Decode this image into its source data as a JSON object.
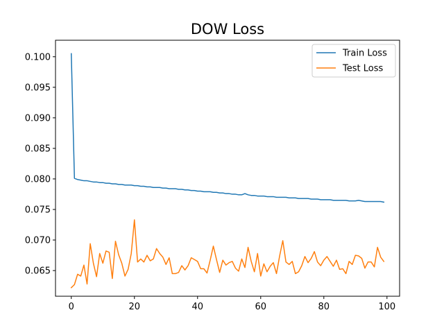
{
  "chart_data": {
    "type": "line",
    "title": "DOW Loss",
    "xlabel": "",
    "ylabel": "",
    "xlim": [
      -5,
      104
    ],
    "ylim": [
      0.0608,
      0.1027
    ],
    "xticks": [
      0,
      20,
      40,
      60,
      80,
      100
    ],
    "yticks": [
      0.065,
      0.07,
      0.075,
      0.08,
      0.085,
      0.09,
      0.095,
      0.1
    ],
    "ytick_labels": [
      "0.065",
      "0.070",
      "0.075",
      "0.080",
      "0.085",
      "0.090",
      "0.095",
      "0.100"
    ],
    "xtick_labels": [
      "0",
      "20",
      "40",
      "60",
      "80",
      "100"
    ],
    "grid": false,
    "legend_position": "top-right",
    "series": [
      {
        "name": "Train Loss",
        "color": "#1f77b4",
        "x": [
          0,
          1,
          2,
          3,
          4,
          5,
          6,
          7,
          8,
          9,
          10,
          11,
          12,
          13,
          14,
          15,
          16,
          17,
          18,
          19,
          20,
          21,
          22,
          23,
          24,
          25,
          26,
          27,
          28,
          29,
          30,
          31,
          32,
          33,
          34,
          35,
          36,
          37,
          38,
          39,
          40,
          41,
          42,
          43,
          44,
          45,
          46,
          47,
          48,
          49,
          50,
          51,
          52,
          53,
          54,
          55,
          56,
          57,
          58,
          59,
          60,
          61,
          62,
          63,
          64,
          65,
          66,
          67,
          68,
          69,
          70,
          71,
          72,
          73,
          74,
          75,
          76,
          77,
          78,
          79,
          80,
          81,
          82,
          83,
          84,
          85,
          86,
          87,
          88,
          89,
          90,
          91,
          92,
          93,
          94,
          95,
          96,
          97,
          98,
          99
        ],
        "values": [
          0.1005,
          0.0801,
          0.0799,
          0.0798,
          0.0797,
          0.0797,
          0.0796,
          0.0795,
          0.0795,
          0.0794,
          0.0794,
          0.0793,
          0.0793,
          0.0792,
          0.0792,
          0.0791,
          0.0791,
          0.079,
          0.079,
          0.079,
          0.0789,
          0.0789,
          0.0788,
          0.0788,
          0.0787,
          0.0787,
          0.0786,
          0.0786,
          0.0786,
          0.0785,
          0.0785,
          0.0784,
          0.0784,
          0.0784,
          0.0783,
          0.0783,
          0.0782,
          0.0782,
          0.0781,
          0.0781,
          0.078,
          0.078,
          0.0779,
          0.0779,
          0.0779,
          0.0778,
          0.0778,
          0.0777,
          0.0777,
          0.0776,
          0.0776,
          0.0775,
          0.0775,
          0.0774,
          0.0774,
          0.0776,
          0.0774,
          0.0773,
          0.0773,
          0.0772,
          0.0772,
          0.0772,
          0.0771,
          0.0771,
          0.0771,
          0.077,
          0.077,
          0.077,
          0.077,
          0.0769,
          0.0769,
          0.0769,
          0.0768,
          0.0768,
          0.0768,
          0.0768,
          0.0767,
          0.0767,
          0.0767,
          0.0766,
          0.0766,
          0.0766,
          0.0766,
          0.0765,
          0.0765,
          0.0765,
          0.0765,
          0.0765,
          0.0764,
          0.0764,
          0.0764,
          0.0765,
          0.0764,
          0.0763,
          0.0763,
          0.0763,
          0.0763,
          0.0763,
          0.0763,
          0.0762
        ]
      },
      {
        "name": "Test Loss",
        "color": "#ff7f0e",
        "x": [
          0,
          1,
          2,
          3,
          4,
          5,
          6,
          7,
          8,
          9,
          10,
          11,
          12,
          13,
          14,
          15,
          16,
          17,
          18,
          19,
          20,
          21,
          22,
          23,
          24,
          25,
          26,
          27,
          28,
          29,
          30,
          31,
          32,
          33,
          34,
          35,
          36,
          37,
          38,
          39,
          40,
          41,
          42,
          43,
          44,
          45,
          46,
          47,
          48,
          49,
          50,
          51,
          52,
          53,
          54,
          55,
          56,
          57,
          58,
          59,
          60,
          61,
          62,
          63,
          64,
          65,
          66,
          67,
          68,
          69,
          70,
          71,
          72,
          73,
          74,
          75,
          76,
          77,
          78,
          79,
          80,
          81,
          82,
          83,
          84,
          85,
          86,
          87,
          88,
          89,
          90,
          91,
          92,
          93,
          94,
          95,
          96,
          97,
          98,
          99
        ],
        "values": [
          0.0622,
          0.0627,
          0.0644,
          0.0641,
          0.0659,
          0.0628,
          0.0694,
          0.0662,
          0.064,
          0.0678,
          0.0662,
          0.0682,
          0.068,
          0.0637,
          0.0698,
          0.0676,
          0.0662,
          0.0641,
          0.0652,
          0.0678,
          0.0733,
          0.0664,
          0.0669,
          0.0664,
          0.0675,
          0.0666,
          0.0669,
          0.0686,
          0.0678,
          0.0672,
          0.066,
          0.0671,
          0.0645,
          0.0645,
          0.0647,
          0.0658,
          0.0651,
          0.0658,
          0.0671,
          0.0668,
          0.0665,
          0.0653,
          0.0653,
          0.0646,
          0.0667,
          0.069,
          0.0668,
          0.0647,
          0.0667,
          0.0659,
          0.0663,
          0.0665,
          0.0654,
          0.0649,
          0.0669,
          0.0655,
          0.0688,
          0.0665,
          0.0648,
          0.0678,
          0.0641,
          0.0661,
          0.0648,
          0.0657,
          0.0663,
          0.0645,
          0.0674,
          0.0699,
          0.0664,
          0.066,
          0.0665,
          0.0645,
          0.0648,
          0.0658,
          0.0673,
          0.0663,
          0.067,
          0.0681,
          0.0664,
          0.0658,
          0.0667,
          0.0673,
          0.0665,
          0.0657,
          0.0667,
          0.0652,
          0.0653,
          0.0645,
          0.0665,
          0.066,
          0.0675,
          0.0674,
          0.067,
          0.0654,
          0.0664,
          0.0664,
          0.0656,
          0.0688,
          0.0672,
          0.0665
        ]
      }
    ]
  }
}
